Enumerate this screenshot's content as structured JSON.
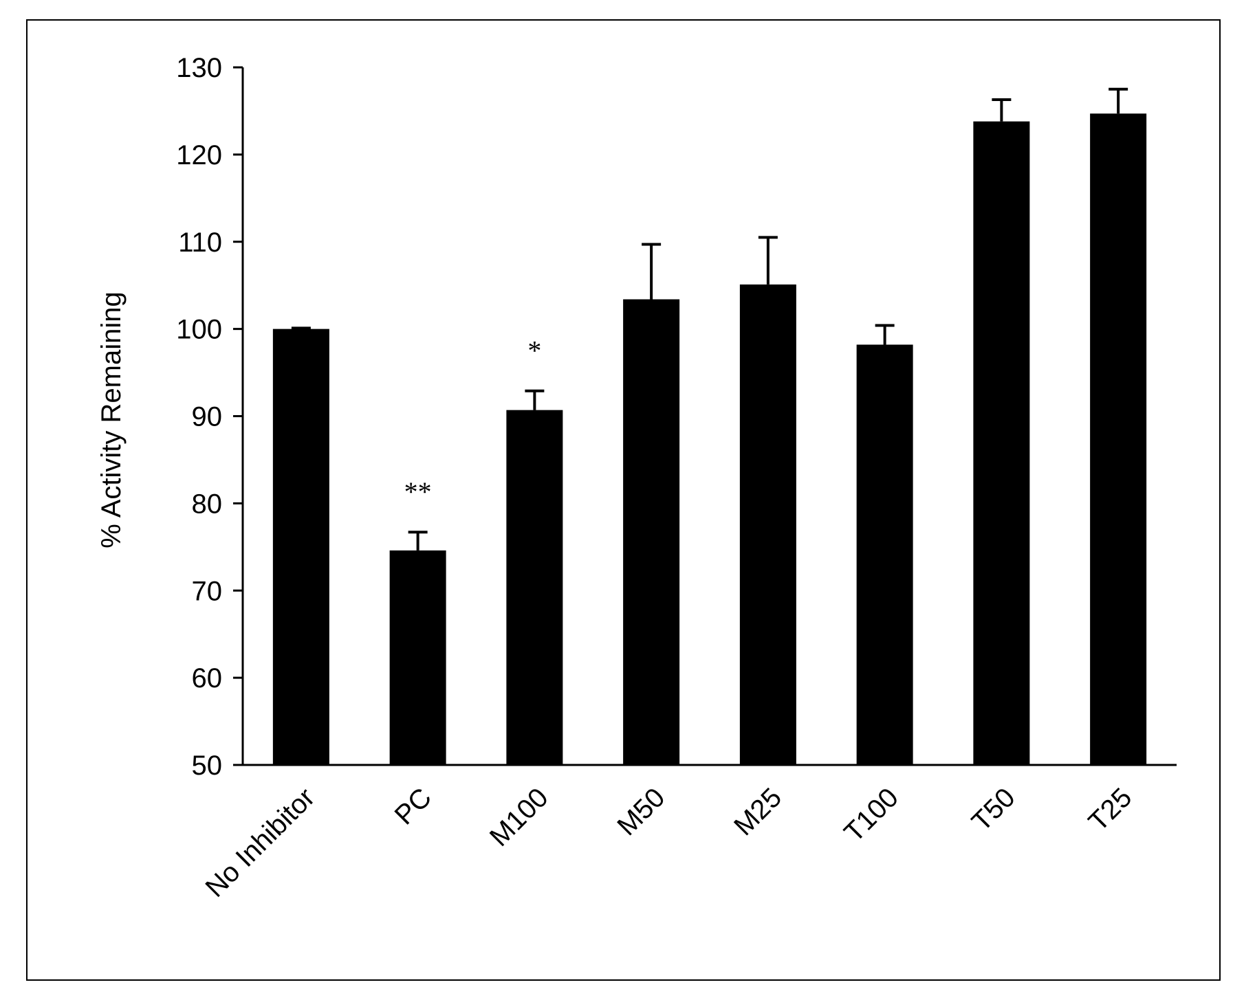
{
  "chart_data": {
    "type": "bar",
    "ylabel": "% Activity Remaining",
    "xlabel": "",
    "ylim": [
      50,
      130
    ],
    "yticks": [
      50,
      60,
      70,
      80,
      90,
      100,
      110,
      120,
      130
    ],
    "grid": false,
    "categories": [
      "No Inhibitor",
      "PC",
      "M100",
      "M50",
      "M25",
      "T100",
      "T50",
      "T25"
    ],
    "values": [
      100,
      74.6,
      90.7,
      103.4,
      105.1,
      98.2,
      123.8,
      124.7
    ],
    "error_plus": [
      0.1,
      2.1,
      2.2,
      6.3,
      5.4,
      2.2,
      2.5,
      2.8
    ],
    "annotations": [
      "",
      "**",
      "*",
      "",
      "",
      "",
      "",
      ""
    ],
    "colors": {
      "bar": "#000000",
      "axis": "#000000",
      "background": "#ffffff"
    }
  }
}
